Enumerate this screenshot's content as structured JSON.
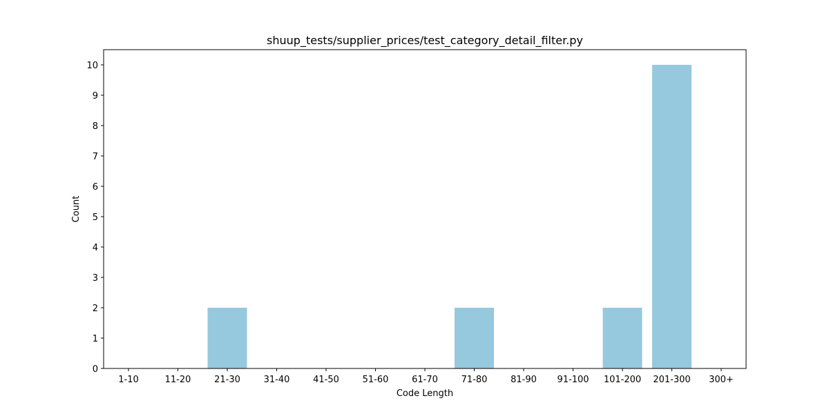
{
  "chart_data": {
    "type": "bar",
    "title": "shuup_tests/supplier_prices/test_category_detail_filter.py",
    "xlabel": "Code Length",
    "ylabel": "Count",
    "categories": [
      "1-10",
      "11-20",
      "21-30",
      "31-40",
      "41-50",
      "51-60",
      "61-70",
      "71-80",
      "81-90",
      "91-100",
      "101-200",
      "201-300",
      "300+"
    ],
    "values": [
      0,
      0,
      2,
      0,
      0,
      0,
      0,
      2,
      0,
      0,
      2,
      10,
      0
    ],
    "yticks": [
      "0",
      "1",
      "2",
      "3",
      "4",
      "5",
      "6",
      "7",
      "8",
      "9",
      "10"
    ],
    "ylim": [
      0,
      10.5
    ],
    "bar_color": "#96c9de",
    "grid": false,
    "legend": "none"
  }
}
